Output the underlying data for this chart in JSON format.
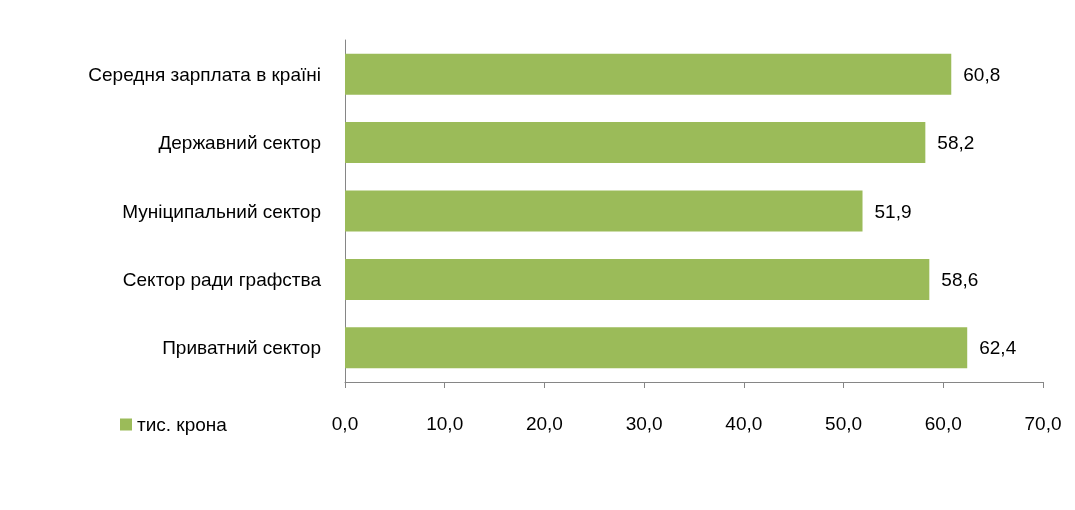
{
  "chart_data": {
    "type": "bar",
    "orientation": "horizontal",
    "categories": [
      "Середня зарплата в країні",
      "Державний сектор",
      "Муніципальний сектор",
      "Сектор ради графства",
      "Приватний сектор"
    ],
    "series": [
      {
        "name": "тис. крона",
        "color": "#9bbb59",
        "values": [
          60.8,
          58.2,
          51.9,
          58.6,
          62.4
        ],
        "value_labels": [
          "60,8",
          "58,2",
          "51,9",
          "58,6",
          "62,4"
        ]
      }
    ],
    "xlim": [
      0,
      70
    ],
    "xticks": [
      {
        "value": 0,
        "label": "0,0"
      },
      {
        "value": 10,
        "label": "10,0"
      },
      {
        "value": 20,
        "label": "20,0"
      },
      {
        "value": 30,
        "label": "30,0"
      },
      {
        "value": 40,
        "label": "40,0"
      },
      {
        "value": 50,
        "label": "50,0"
      },
      {
        "value": 60,
        "label": "60,0"
      },
      {
        "value": 70,
        "label": "70,0"
      }
    ],
    "grid": false,
    "legend": "bottom left"
  }
}
